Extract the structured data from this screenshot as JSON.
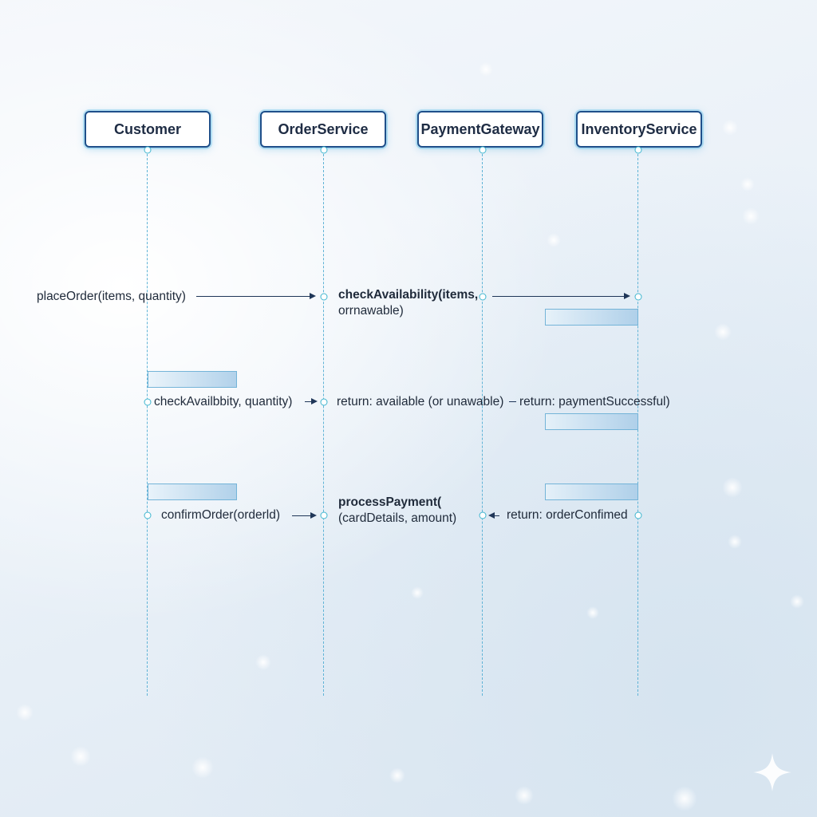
{
  "participants": [
    {
      "id": "customer",
      "name": "Customer"
    },
    {
      "id": "order",
      "name": "OrderService"
    },
    {
      "id": "payment",
      "name": "PaymentGateway"
    },
    {
      "id": "inventory",
      "name": "InventoryService"
    }
  ],
  "messages": {
    "m1": "placeOrder(items, quantity)",
    "m2_line1": "checkAvailability(items,",
    "m2_line2": "orrnawable)",
    "m3": "checkAvailbbity, quantity)",
    "m4": "return: available (or unawable)",
    "m5": "return: paymentSuccessful)",
    "m6": "confirmOrder(orderld)",
    "m7_line1": "processPayment(",
    "m7_line2": "(cardDetails, amount)",
    "m8": "return: orderConfimed"
  },
  "colors": {
    "participant_border": "#1f4f8a",
    "lifeline": "#5fb3d6",
    "arrow": "#1f3658",
    "activation": "#74b4d8"
  },
  "icons": {
    "corner_sparkle": "sparkle-icon"
  }
}
